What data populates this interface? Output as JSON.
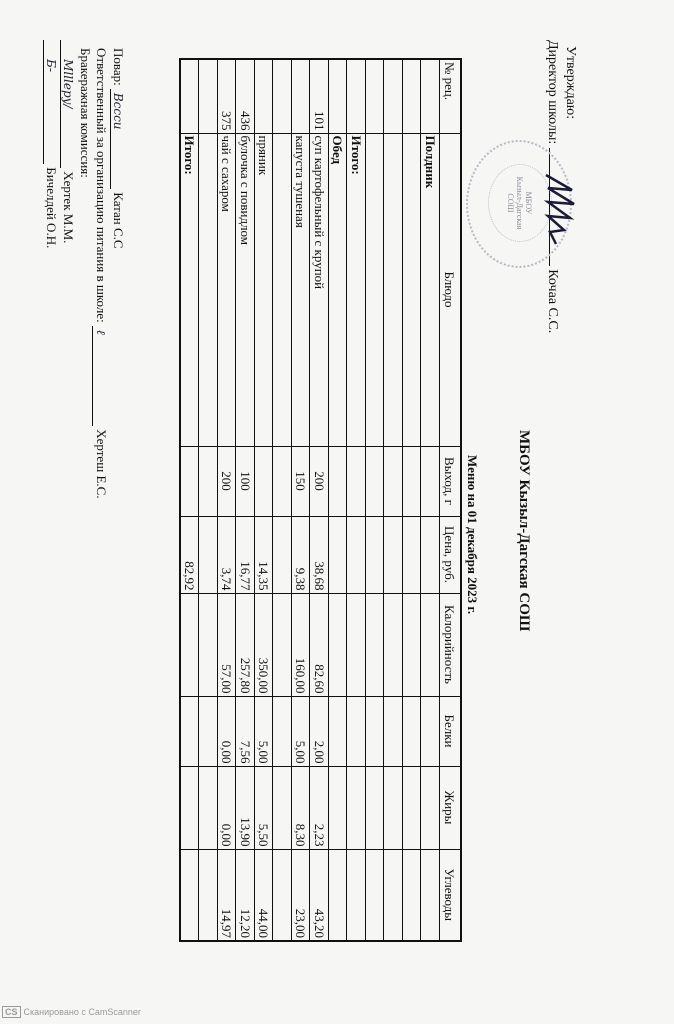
{
  "approval": {
    "approve_label": "Утверждаю:",
    "director_label": "Директор школы:",
    "director_name": "Кочаа С.С.",
    "stamp_text": [
      "МБОУ",
      "Кызыл-Дагская",
      "СОШ"
    ]
  },
  "header": {
    "school": "МБОУ Кызыл-Дагская СОШ",
    "menu_title": "Меню на 01 декабря 2023 г."
  },
  "table": {
    "columns": [
      "№ рец.",
      "Блюдо",
      "Выход, г",
      "Цена, руб.",
      "Калорийность",
      "Белки",
      "Жиры",
      "Углеводы"
    ],
    "rows": [
      {
        "rec": "",
        "dish": "Полдник",
        "out": "",
        "price": "",
        "kcal": "",
        "prot": "",
        "fat": "",
        "carb": "",
        "bold": true
      },
      {
        "rec": "",
        "dish": "",
        "out": "",
        "price": "",
        "kcal": "",
        "prot": "",
        "fat": "",
        "carb": ""
      },
      {
        "rec": "",
        "dish": "",
        "out": "",
        "price": "",
        "kcal": "",
        "prot": "",
        "fat": "",
        "carb": ""
      },
      {
        "rec": "",
        "dish": "",
        "out": "",
        "price": "",
        "kcal": "",
        "prot": "",
        "fat": "",
        "carb": ""
      },
      {
        "rec": "",
        "dish": "Итого:",
        "out": "",
        "price": "",
        "kcal": "",
        "prot": "",
        "fat": "",
        "carb": "",
        "bold": true
      },
      {
        "rec": "",
        "dish": "Обед",
        "out": "",
        "price": "",
        "kcal": "",
        "prot": "",
        "fat": "",
        "carb": "",
        "bold": true
      },
      {
        "rec": "101",
        "dish": "суп картофельный с крупой",
        "out": "200",
        "price": "38,68",
        "kcal": "82,60",
        "prot": "2,00",
        "fat": "2,23",
        "carb": "43,20"
      },
      {
        "rec": "",
        "dish": "капуста тушеная",
        "out": "150",
        "price": "9,38",
        "kcal": "160,00",
        "prot": "5,00",
        "fat": "8,30",
        "carb": "23,00"
      },
      {
        "rec": "",
        "dish": "",
        "out": "",
        "price": "",
        "kcal": "",
        "prot": "",
        "fat": "",
        "carb": ""
      },
      {
        "rec": "",
        "dish": "пряник",
        "out": "",
        "price": "14,35",
        "kcal": "350,00",
        "prot": "5,00",
        "fat": "5,50",
        "carb": "44,00"
      },
      {
        "rec": "436",
        "dish": "булочка с повидлом",
        "out": "100",
        "price": "16,77",
        "kcal": "257,80",
        "prot": "7,56",
        "fat": "13,90",
        "carb": "12,20"
      },
      {
        "rec": "375",
        "dish": "чай с сахаром",
        "out": "200",
        "price": "3,74",
        "kcal": "57,00",
        "prot": "0,00",
        "fat": "0,00",
        "carb": "14,97"
      },
      {
        "rec": "",
        "dish": "",
        "out": "",
        "price": "",
        "kcal": "",
        "prot": "",
        "fat": "",
        "carb": ""
      },
      {
        "rec": "",
        "dish": "Итого:",
        "out": "",
        "price": "82,92",
        "kcal": "",
        "prot": "",
        "fat": "",
        "carb": "",
        "bold": true
      }
    ]
  },
  "signatures": {
    "cook_label": "Повар:",
    "cook_name": "Катан С.С",
    "responsible_label": "Ответственный за организацию питания в школе:",
    "responsible_name": "Хертеш Е.С.",
    "commission_label": "Бракеражная комиссия:",
    "member1": "Хертек М.М.",
    "member2": "Бичелдей О.Н."
  },
  "watermark": {
    "logo": "CS",
    "text": "Сканировано с CamScanner"
  }
}
